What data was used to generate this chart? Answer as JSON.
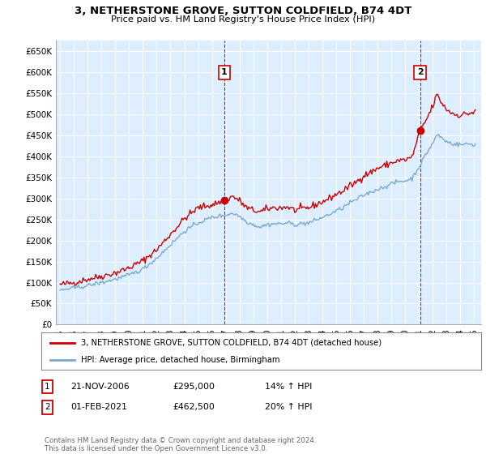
{
  "title": "3, NETHERSTONE GROVE, SUTTON COLDFIELD, B74 4DT",
  "subtitle": "Price paid vs. HM Land Registry's House Price Index (HPI)",
  "ylabel_ticks": [
    "£0",
    "£50K",
    "£100K",
    "£150K",
    "£200K",
    "£250K",
    "£300K",
    "£350K",
    "£400K",
    "£450K",
    "£500K",
    "£550K",
    "£600K",
    "£650K"
  ],
  "ytick_values": [
    0,
    50000,
    100000,
    150000,
    200000,
    250000,
    300000,
    350000,
    400000,
    450000,
    500000,
    550000,
    600000,
    650000
  ],
  "ylim": [
    0,
    675000
  ],
  "xlim_start": 1994.7,
  "xlim_end": 2025.5,
  "xtick_years": [
    1995,
    1996,
    1997,
    1998,
    1999,
    2000,
    2001,
    2002,
    2003,
    2004,
    2005,
    2006,
    2007,
    2008,
    2009,
    2010,
    2011,
    2012,
    2013,
    2014,
    2015,
    2016,
    2017,
    2018,
    2019,
    2020,
    2021,
    2022,
    2023,
    2024,
    2025
  ],
  "bg_color": "#ddeeff",
  "grid_color": "#ffffff",
  "red_color": "#cc0000",
  "blue_color": "#7aaad0",
  "marker1_date": 2006.9,
  "marker1_value": 295000,
  "marker2_date": 2021.08,
  "marker2_value": 462500,
  "legend_label_red": "3, NETHERSTONE GROVE, SUTTON COLDFIELD, B74 4DT (detached house)",
  "legend_label_blue": "HPI: Average price, detached house, Birmingham",
  "table_row1_date": "21-NOV-2006",
  "table_row1_price": "£295,000",
  "table_row1_hpi": "14% ↑ HPI",
  "table_row2_date": "01-FEB-2021",
  "table_row2_price": "£462,500",
  "table_row2_hpi": "20% ↑ HPI",
  "footer": "Contains HM Land Registry data © Crown copyright and database right 2024.\nThis data is licensed under the Open Government Licence v3.0."
}
